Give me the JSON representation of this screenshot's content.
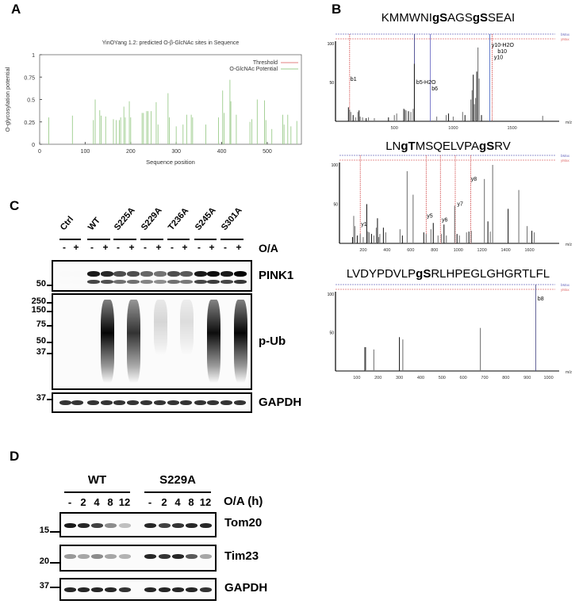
{
  "panels": {
    "a": "A",
    "b": "B",
    "c": "C",
    "d": "D"
  },
  "chart_data": [
    {
      "type": "bar",
      "title": "YinOYang 1.2: predicted O-β-GlcNAc sites in Sequence",
      "xlabel": "Sequence position",
      "ylabel": "O-glycosylation potential",
      "xlim": [
        0,
        575
      ],
      "ylim": [
        0,
        1
      ],
      "xticks": [
        "0",
        "100",
        "200",
        "300",
        "400",
        "500"
      ],
      "yticks": [
        "0",
        "0.25",
        "0.5",
        "0.75",
        "1"
      ],
      "legend": {
        "placement": "top-right",
        "entries": [
          "Threshold",
          "O-GlcNAc Potential"
        ]
      },
      "colors": {
        "threshold": "#e08080",
        "potential": "#9ccc8c"
      },
      "x": [
        20,
        72,
        118,
        122,
        132,
        135,
        145,
        162,
        168,
        175,
        178,
        185,
        188,
        197,
        200,
        225,
        228,
        235,
        238,
        245,
        256,
        260,
        282,
        285,
        300,
        315,
        323,
        333,
        336,
        365,
        393,
        402,
        405,
        418,
        420,
        432,
        462,
        466,
        478,
        494,
        497,
        510,
        534,
        537,
        545,
        552,
        565
      ],
      "values": [
        0.3,
        0.32,
        0.27,
        0.5,
        0.38,
        0.32,
        0.31,
        0.28,
        0.27,
        0.27,
        0.3,
        0.42,
        0.3,
        0.48,
        0.3,
        0.35,
        0.35,
        0.37,
        0.37,
        0.37,
        0.47,
        0.22,
        0.57,
        0.3,
        0.2,
        0.22,
        0.33,
        0.33,
        0.3,
        0.22,
        0.3,
        0.6,
        0.35,
        0.72,
        0.48,
        0.33,
        0.25,
        0.28,
        0.5,
        0.49,
        0.27,
        0.17,
        0.33,
        0.22,
        0.33,
        0.2,
        0.26
      ]
    },
    {
      "type": "bar",
      "peptide_pre": "KMMWNI",
      "peptide": [
        [
          "KMMWNI",
          ""
        ],
        [
          "g",
          "b"
        ],
        [
          "S",
          "b"
        ],
        [
          "AGS",
          ""
        ],
        [
          "g",
          "b"
        ],
        [
          "S",
          "b"
        ],
        [
          "SEAI",
          ""
        ]
      ],
      "xlabel": "m/z",
      "xlim": [
        0,
        1900
      ],
      "ylim": [
        0,
        100
      ],
      "xticks": [
        "500",
        "1000",
        "1500"
      ],
      "yticks": [
        "50",
        "100"
      ],
      "ion_labels": [
        {
          "t": "b1",
          "mz": 120,
          "y": 52
        },
        {
          "t": "b5-H2O",
          "mz": 680,
          "y": 48
        },
        {
          "t": "b6",
          "mz": 810,
          "y": 40
        },
        {
          "t": "y10-H2O",
          "mz": 1320,
          "y": 96
        },
        {
          "t": "b10",
          "mz": 1370,
          "y": 88
        },
        {
          "t": "y10",
          "mz": 1340,
          "y": 80
        }
      ],
      "marker_lines": [
        {
          "mz": 120,
          "c": "#d04040"
        },
        {
          "mz": 670,
          "c": "#303080"
        },
        {
          "mz": 805,
          "c": "#6060c0"
        },
        {
          "mz": 1310,
          "c": "#4060c0"
        },
        {
          "mz": 1330,
          "c": "#d04040"
        }
      ],
      "x": [
        110,
        120,
        130,
        150,
        170,
        190,
        200,
        210,
        230,
        260,
        280,
        330,
        450,
        500,
        520,
        580,
        590,
        600,
        620,
        640,
        660,
        670,
        860,
        940,
        960,
        1000,
        1080,
        1100,
        1150,
        1160,
        1170,
        1180,
        1190,
        1200,
        1210,
        1220,
        1240,
        1760
      ],
      "values": [
        18,
        15,
        12,
        8,
        5,
        12,
        14,
        6,
        5,
        4,
        5,
        4,
        5,
        8,
        10,
        16,
        15,
        14,
        13,
        12,
        16,
        74,
        6,
        8,
        10,
        6,
        12,
        8,
        28,
        40,
        60,
        22,
        30,
        64,
        95,
        55,
        8,
        7
      ]
    },
    {
      "type": "bar",
      "peptide": [
        [
          "LN",
          ""
        ],
        [
          "g",
          "b"
        ],
        [
          "T",
          "b"
        ],
        [
          "MSQELVPA",
          ""
        ],
        [
          "g",
          "b"
        ],
        [
          "S",
          "b"
        ],
        [
          "RV",
          ""
        ]
      ],
      "xlabel": "m/z",
      "xlim": [
        0,
        1850
      ],
      "ylim": [
        0,
        100
      ],
      "xticks": [
        "200",
        "400",
        "600",
        "800",
        "1000",
        "1200",
        "1400",
        "1600"
      ],
      "yticks": [
        "50",
        "100"
      ],
      "ion_labels": [
        {
          "t": "y1",
          "mz": 175,
          "y": 22
        },
        {
          "t": "y5",
          "mz": 730,
          "y": 33
        },
        {
          "t": "y6",
          "mz": 855,
          "y": 28
        },
        {
          "t": "y7",
          "mz": 985,
          "y": 48
        },
        {
          "t": "y8",
          "mz": 1100,
          "y": 80
        }
      ],
      "marker_lines": [
        {
          "mz": 175,
          "c": "#d04040"
        },
        {
          "mz": 730,
          "c": "#d04040"
        },
        {
          "mz": 850,
          "c": "#d04040"
        },
        {
          "mz": 975,
          "c": "#d04040"
        },
        {
          "mz": 1105,
          "c": "#d04040"
        }
      ],
      "x": [
        110,
        120,
        130,
        150,
        175,
        200,
        230,
        240,
        250,
        270,
        290,
        310,
        320,
        330,
        340,
        370,
        390,
        510,
        530,
        570,
        620,
        710,
        730,
        770,
        790,
        830,
        860,
        880,
        900,
        970,
        990,
        1010,
        1070,
        1090,
        1110,
        1220,
        1250,
        1270,
        1290,
        1420,
        1510,
        1580,
        1620,
        1640
      ],
      "values": [
        8,
        35,
        22,
        10,
        12,
        8,
        50,
        15,
        14,
        12,
        10,
        20,
        32,
        8,
        12,
        20,
        14,
        18,
        10,
        92,
        62,
        14,
        12,
        18,
        26,
        10,
        12,
        24,
        10,
        48,
        12,
        10,
        14,
        15,
        16,
        82,
        28,
        15,
        100,
        44,
        68,
        22,
        16,
        14
      ]
    },
    {
      "type": "bar",
      "peptide": [
        [
          "LVDYPDVLP",
          ""
        ],
        [
          "g",
          "b"
        ],
        [
          "S",
          "b"
        ],
        [
          "RLHPEGLGHGRTLFL",
          ""
        ]
      ],
      "xlabel": "m/z",
      "xlim": [
        0,
        1050
      ],
      "ylim": [
        0,
        100
      ],
      "xticks": [
        "100",
        "200",
        "300",
        "400",
        "500",
        "600",
        "700",
        "800",
        "900",
        "1000"
      ],
      "yticks": [
        "50",
        "100"
      ],
      "ion_labels": [
        {
          "t": "b8",
          "mz": 945,
          "y": 92
        }
      ],
      "marker_lines": [
        {
          "mz": 940,
          "c": "#404080"
        }
      ],
      "x": [
        138,
        142,
        180,
        300,
        316,
        680
      ],
      "values": [
        31,
        31,
        28,
        44,
        41,
        56
      ]
    }
  ],
  "panel_c": {
    "groups": [
      "Ctrl",
      "WT",
      "S225A",
      "S229A",
      "T236A",
      "S245A",
      "S301A"
    ],
    "treatment_label": "O/A",
    "signs": [
      "-",
      "+",
      "-",
      "+",
      "-",
      "+",
      "-",
      "+",
      "-",
      "+",
      "-",
      "+",
      "-",
      "+"
    ],
    "blots": [
      {
        "label": "PINK1",
        "markers": [
          "50"
        ],
        "intensity": [
          0.02,
          0.02,
          0.9,
          0.85,
          0.7,
          0.7,
          0.6,
          0.55,
          0.7,
          0.65,
          0.9,
          0.95,
          0.9,
          0.98
        ]
      },
      {
        "label": "p-Ub",
        "markers": [
          "250",
          "150",
          "75",
          "50",
          "37"
        ],
        "intensity": [
          0,
          0,
          0,
          0.98,
          0,
          0.8,
          0,
          0.15,
          0,
          0.12,
          0,
          0.95,
          0,
          0.98
        ]
      },
      {
        "label": "GAPDH",
        "markers": [
          "37"
        ],
        "intensity": [
          0.8,
          0.8,
          0.8,
          0.8,
          0.8,
          0.8,
          0.8,
          0.8,
          0.8,
          0.8,
          0.8,
          0.8,
          0.8,
          0.8
        ]
      }
    ]
  },
  "panel_d": {
    "groups": [
      "WT",
      "S229A"
    ],
    "treatment_label": "O/A (h)",
    "times": [
      "-",
      "2",
      "4",
      "8",
      "12",
      "-",
      "2",
      "4",
      "8",
      "12"
    ],
    "blots": [
      {
        "label": "Tom20",
        "markers": [
          "15"
        ],
        "intensity": [
          0.9,
          0.85,
          0.75,
          0.45,
          0.25,
          0.85,
          0.75,
          0.8,
          0.85,
          0.85
        ]
      },
      {
        "label": "Tim23",
        "markers": [
          "20"
        ],
        "intensity": [
          0.4,
          0.35,
          0.45,
          0.35,
          0.3,
          0.85,
          0.8,
          0.85,
          0.65,
          0.35
        ]
      },
      {
        "label": "GAPDH",
        "markers": [
          "37"
        ],
        "intensity": [
          0.85,
          0.85,
          0.85,
          0.85,
          0.8,
          0.85,
          0.85,
          0.85,
          0.85,
          0.8
        ]
      }
    ]
  }
}
